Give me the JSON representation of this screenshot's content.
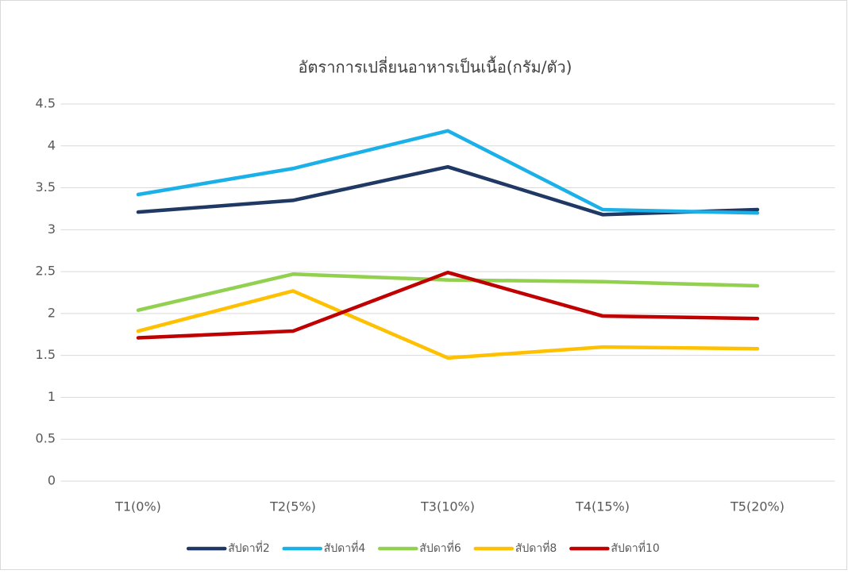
{
  "chart_data": {
    "type": "line",
    "title": "อัตราการเปลี่ยนอาหารเป็นเนื้อ(กรัม/ตัว)",
    "categories": [
      "T1(0%)",
      "T2(5%)",
      "T3(10%)",
      "T4(15%)",
      "T5(20%)"
    ],
    "series": [
      {
        "name": "สัปดาที่2",
        "color": "#1f3864",
        "values": [
          3.21,
          3.35,
          3.75,
          3.18,
          3.24
        ]
      },
      {
        "name": "สัปดาที่4",
        "color": "#1cb0e8",
        "values": [
          3.42,
          3.73,
          4.18,
          3.24,
          3.2
        ]
      },
      {
        "name": "สัปดาที่6",
        "color": "#92d050",
        "values": [
          2.04,
          2.47,
          2.4,
          2.38,
          2.33
        ]
      },
      {
        "name": "สัปดาที่8",
        "color": "#ffc000",
        "values": [
          1.79,
          2.27,
          1.47,
          1.6,
          1.58
        ]
      },
      {
        "name": "สัปดาที่10",
        "color": "#c00000",
        "values": [
          1.71,
          1.79,
          2.49,
          1.97,
          1.94
        ]
      }
    ],
    "ylim": [
      0,
      4.5
    ],
    "yticks": [
      0,
      0.5,
      1,
      1.5,
      2,
      2.5,
      3,
      3.5,
      4,
      4.5
    ],
    "grid": true,
    "legend": "bottom"
  }
}
